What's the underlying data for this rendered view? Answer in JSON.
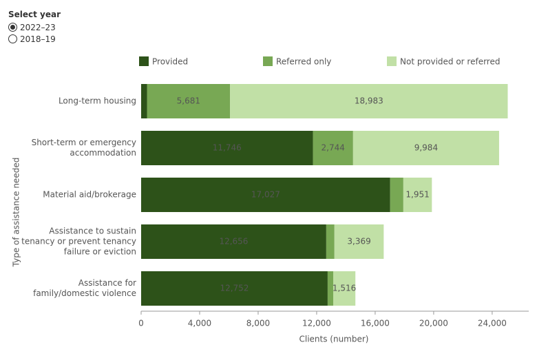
{
  "controls": {
    "label": "Select year",
    "options": [
      "2022–23",
      "2018–19"
    ],
    "selected": 0
  },
  "chart_data": {
    "type": "stacked-bar-horizontal",
    "categories": [
      [
        "Long-term housing"
      ],
      [
        "Short-term or emergency",
        "accommodation"
      ],
      [
        "Material aid/brokerage"
      ],
      [
        "Assistance to sustain",
        "tenancy or prevent tenancy",
        "failure or eviction"
      ],
      [
        "Assistance for",
        "family/domestic violence"
      ]
    ],
    "series": [
      {
        "name": "Provided",
        "color": "#2d5219",
        "label_color": "#ffffff",
        "values": [
          400,
          11746,
          17027,
          12656,
          12752
        ],
        "value_labels": [
          null,
          "11,746",
          "17,027",
          "12,656",
          "12,752"
        ]
      },
      {
        "name": "Referred only",
        "color": "#78a854",
        "label_color": "#333333",
        "values": [
          5681,
          2744,
          900,
          560,
          380
        ],
        "value_labels": [
          "5,681",
          "2,744",
          null,
          null,
          null
        ]
      },
      {
        "name": "Not provided  or referred",
        "color": "#c1e0a6",
        "label_color": "#333333",
        "values": [
          18983,
          9984,
          1951,
          3369,
          1516
        ],
        "value_labels": [
          "18,983",
          "9,984",
          "1,951",
          "3,369",
          "1,516"
        ]
      }
    ],
    "x_label": "Clients (number)",
    "y_label": "Type of assistance needed",
    "xlim": [
      0,
      26500
    ],
    "xticks": [
      0,
      {
        "value": 4000,
        "label": "4,000"
      },
      {
        "value": 8000,
        "label": "8,000"
      },
      {
        "value": 12000,
        "label": "12,000"
      },
      {
        "value": 16000,
        "label": "16,000"
      },
      {
        "value": 20000,
        "label": "20,000"
      },
      {
        "value": 24000,
        "label": "24,000"
      }
    ]
  }
}
